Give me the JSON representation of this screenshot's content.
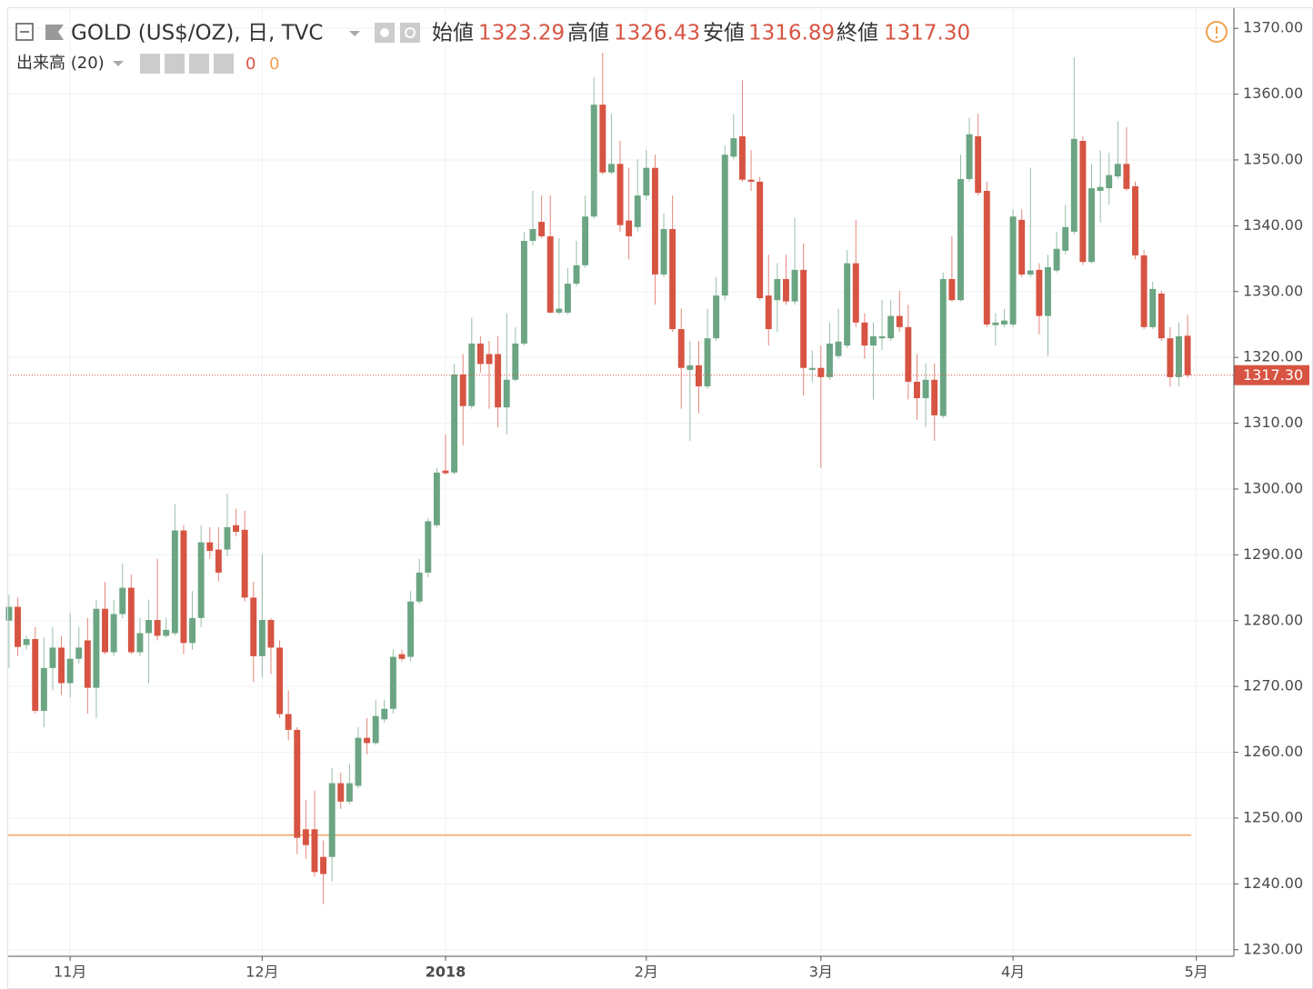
{
  "header": {
    "symbol": "GOLD (US$/OZ), 日, TVC",
    "ohlc": [
      {
        "label": "始値",
        "value": "1323.29"
      },
      {
        "label": "高値",
        "value": "1326.43"
      },
      {
        "label": "安値",
        "value": "1316.89"
      },
      {
        "label": "終値",
        "value": "1317.30"
      }
    ],
    "volume": {
      "label": "出来高 (20)",
      "values": [
        "0",
        "0"
      ]
    }
  },
  "chart_data": {
    "type": "candlestick",
    "up_color": "#6ba583",
    "down_color": "#d75442",
    "grid": true,
    "xlim": [
      -0.2,
      140.3
    ],
    "xticks": [
      {
        "value": 7,
        "label": "11月"
      },
      {
        "value": 29,
        "label": "12月"
      },
      {
        "value": 50,
        "label": "2018"
      },
      {
        "value": 73,
        "label": "2月"
      },
      {
        "value": 93,
        "label": "3月"
      },
      {
        "value": 115,
        "label": "4月"
      },
      {
        "value": 136,
        "label": "5月"
      }
    ],
    "ylim": [
      1229.0,
      1373.2
    ],
    "yticks": [
      {
        "value": 1230,
        "label": "1230.00"
      },
      {
        "value": 1240,
        "label": "1240.00"
      },
      {
        "value": 1250,
        "label": "1250.00"
      },
      {
        "value": 1260,
        "label": "1260.00"
      },
      {
        "value": 1270,
        "label": "1270.00"
      },
      {
        "value": 1280,
        "label": "1280.00"
      },
      {
        "value": 1290,
        "label": "1290.00"
      },
      {
        "value": 1300,
        "label": "1300.00"
      },
      {
        "value": 1310,
        "label": "1310.00"
      },
      {
        "value": 1320,
        "label": "1320.00"
      },
      {
        "value": 1330,
        "label": "1330.00"
      },
      {
        "value": 1340,
        "label": "1340.00"
      },
      {
        "value": 1350,
        "label": "1350.00"
      },
      {
        "value": 1360,
        "label": "1360.00"
      },
      {
        "value": 1370,
        "label": "1370.00"
      }
    ],
    "last_price": {
      "value": 1317.3,
      "label": "1317.30",
      "color": "#d75442"
    },
    "volume_ma": {
      "value": 1247.4,
      "color": "#f4a460"
    },
    "ohlc": [
      [
        1280.0,
        1283.9,
        1272.8,
        1282.1
      ],
      [
        1282.1,
        1283.5,
        1274.6,
        1276.0
      ],
      [
        1276.3,
        1277.7,
        1275.6,
        1277.2
      ],
      [
        1277.2,
        1279.0,
        1265.9,
        1266.3
      ],
      [
        1266.3,
        1277.4,
        1263.8,
        1272.8
      ],
      [
        1272.8,
        1279.0,
        1269.4,
        1275.9
      ],
      [
        1275.9,
        1277.7,
        1268.7,
        1270.5
      ],
      [
        1270.5,
        1281.1,
        1268.3,
        1274.2
      ],
      [
        1274.2,
        1279.0,
        1273.5,
        1275.9
      ],
      [
        1277.0,
        1280.4,
        1265.9,
        1269.8
      ],
      [
        1269.8,
        1283.2,
        1265.2,
        1281.8
      ],
      [
        1281.8,
        1285.9,
        1274.9,
        1275.2
      ],
      [
        1275.2,
        1283.2,
        1274.6,
        1281.0
      ],
      [
        1281.0,
        1288.7,
        1280.4,
        1285.0
      ],
      [
        1285.0,
        1287.0,
        1274.9,
        1275.2
      ],
      [
        1275.2,
        1280.4,
        1274.6,
        1278.1
      ],
      [
        1278.1,
        1283.2,
        1270.5,
        1280.1
      ],
      [
        1280.1,
        1289.4,
        1277.0,
        1277.7
      ],
      [
        1277.7,
        1280.4,
        1277.4,
        1278.6
      ],
      [
        1278.1,
        1297.7,
        1277.7,
        1293.7
      ],
      [
        1293.7,
        1294.5,
        1274.9,
        1276.6
      ],
      [
        1276.6,
        1284.5,
        1275.6,
        1280.4
      ],
      [
        1280.4,
        1294.5,
        1279.0,
        1291.9
      ],
      [
        1291.9,
        1294.2,
        1289.4,
        1290.6
      ],
      [
        1290.8,
        1294.2,
        1286.0,
        1287.3
      ],
      [
        1290.8,
        1299.3,
        1289.8,
        1294.2
      ],
      [
        1294.5,
        1297.0,
        1292.8,
        1293.5
      ],
      [
        1293.8,
        1296.7,
        1282.9,
        1283.5
      ],
      [
        1283.5,
        1285.9,
        1270.7,
        1274.6
      ],
      [
        1274.6,
        1290.1,
        1271.4,
        1280.1
      ],
      [
        1280.1,
        1280.4,
        1271.9,
        1275.9
      ],
      [
        1275.9,
        1277.0,
        1265.2,
        1265.8
      ],
      [
        1265.8,
        1269.4,
        1261.8,
        1263.4
      ],
      [
        1263.4,
        1263.8,
        1244.5,
        1247.0
      ],
      [
        1248.3,
        1252.8,
        1243.8,
        1245.9
      ],
      [
        1248.3,
        1254.2,
        1241.1,
        1241.8
      ],
      [
        1244.1,
        1246.6,
        1236.9,
        1241.5
      ],
      [
        1244.1,
        1257.6,
        1240.4,
        1255.3
      ],
      [
        1255.3,
        1256.9,
        1251.4,
        1252.5
      ],
      [
        1252.5,
        1258.3,
        1252.1,
        1255.3
      ],
      [
        1254.9,
        1263.8,
        1254.5,
        1262.2
      ],
      [
        1262.2,
        1265.2,
        1259.7,
        1261.4
      ],
      [
        1261.4,
        1268.0,
        1261.1,
        1265.5
      ],
      [
        1265.0,
        1268.0,
        1264.5,
        1266.6
      ],
      [
        1266.6,
        1275.6,
        1265.9,
        1274.5
      ],
      [
        1274.9,
        1275.6,
        1273.8,
        1274.2
      ],
      [
        1274.5,
        1284.5,
        1273.8,
        1282.9
      ],
      [
        1282.9,
        1289.4,
        1282.5,
        1287.3
      ],
      [
        1287.3,
        1295.6,
        1286.6,
        1295.1
      ],
      [
        1294.5,
        1303.2,
        1294.2,
        1302.5
      ],
      [
        1302.8,
        1308.3,
        1302.2,
        1302.4
      ],
      [
        1302.5,
        1319.0,
        1302.2,
        1317.4
      ],
      [
        1317.4,
        1320.5,
        1306.6,
        1312.6
      ],
      [
        1312.6,
        1326.0,
        1312.2,
        1322.1
      ],
      [
        1322.1,
        1323.2,
        1317.7,
        1319.0
      ],
      [
        1320.5,
        1322.5,
        1312.2,
        1319.0
      ],
      [
        1320.5,
        1323.2,
        1309.4,
        1312.4
      ],
      [
        1312.4,
        1326.7,
        1308.3,
        1316.6
      ],
      [
        1316.6,
        1324.6,
        1316.3,
        1322.1
      ],
      [
        1322.1,
        1339.1,
        1321.8,
        1337.7
      ],
      [
        1337.7,
        1345.3,
        1337.0,
        1339.5
      ],
      [
        1340.6,
        1344.6,
        1338.1,
        1338.4
      ],
      [
        1338.4,
        1344.6,
        1326.7,
        1326.8
      ],
      [
        1326.8,
        1338.1,
        1326.5,
        1327.4
      ],
      [
        1326.8,
        1333.6,
        1326.5,
        1331.2
      ],
      [
        1331.2,
        1337.7,
        1330.8,
        1334.0
      ],
      [
        1334.0,
        1344.6,
        1333.6,
        1341.4
      ],
      [
        1341.4,
        1362.6,
        1341.1,
        1358.4
      ],
      [
        1358.4,
        1366.3,
        1347.8,
        1348.1
      ],
      [
        1348.1,
        1357.0,
        1347.8,
        1349.4
      ],
      [
        1349.4,
        1352.9,
        1339.1,
        1340.1
      ],
      [
        1340.8,
        1348.8,
        1334.9,
        1338.4
      ],
      [
        1339.8,
        1350.1,
        1339.1,
        1344.6
      ],
      [
        1344.6,
        1351.5,
        1343.9,
        1348.8
      ],
      [
        1348.8,
        1350.8,
        1328.0,
        1332.6
      ],
      [
        1332.6,
        1341.9,
        1332.2,
        1339.5
      ],
      [
        1339.5,
        1344.6,
        1323.9,
        1324.3
      ],
      [
        1324.3,
        1327.4,
        1312.2,
        1318.4
      ],
      [
        1318.1,
        1322.5,
        1307.3,
        1318.8
      ],
      [
        1318.8,
        1322.5,
        1311.5,
        1315.6
      ],
      [
        1315.6,
        1327.4,
        1315.2,
        1322.9
      ],
      [
        1322.9,
        1332.2,
        1322.5,
        1329.4
      ],
      [
        1329.4,
        1352.2,
        1328.7,
        1350.8
      ],
      [
        1350.5,
        1357.0,
        1350.1,
        1353.3
      ],
      [
        1353.6,
        1362.1,
        1346.7,
        1347.0
      ],
      [
        1347.0,
        1351.5,
        1345.3,
        1346.7
      ],
      [
        1346.7,
        1347.4,
        1328.7,
        1329.0
      ],
      [
        1329.4,
        1335.6,
        1321.8,
        1324.3
      ],
      [
        1328.7,
        1334.3,
        1323.9,
        1331.9
      ],
      [
        1331.9,
        1335.6,
        1328.0,
        1328.5
      ],
      [
        1328.5,
        1341.2,
        1328.0,
        1333.3
      ],
      [
        1333.3,
        1337.3,
        1314.2,
        1318.4
      ],
      [
        1318.1,
        1321.1,
        1316.3,
        1318.4
      ],
      [
        1318.4,
        1321.8,
        1303.2,
        1317.0
      ],
      [
        1317.0,
        1325.3,
        1316.6,
        1322.1
      ],
      [
        1320.2,
        1327.4,
        1319.8,
        1322.4
      ],
      [
        1321.8,
        1336.3,
        1321.4,
        1334.3
      ],
      [
        1334.3,
        1340.9,
        1324.6,
        1325.3
      ],
      [
        1325.3,
        1326.7,
        1319.8,
        1321.8
      ],
      [
        1321.8,
        1325.3,
        1313.6,
        1323.2
      ],
      [
        1322.9,
        1328.7,
        1321.1,
        1323.2
      ],
      [
        1322.9,
        1328.7,
        1322.5,
        1326.3
      ],
      [
        1326.3,
        1330.1,
        1323.9,
        1324.6
      ],
      [
        1324.6,
        1328.0,
        1313.6,
        1316.3
      ],
      [
        1316.3,
        1320.5,
        1310.5,
        1313.8
      ],
      [
        1313.8,
        1319.1,
        1309.4,
        1316.6
      ],
      [
        1316.6,
        1319.1,
        1307.3,
        1311.2
      ],
      [
        1311.1,
        1332.9,
        1310.8,
        1331.9
      ],
      [
        1331.9,
        1338.4,
        1328.5,
        1328.7
      ],
      [
        1328.7,
        1350.8,
        1328.5,
        1347.1
      ],
      [
        1347.1,
        1356.4,
        1346.7,
        1353.9
      ],
      [
        1353.6,
        1357.0,
        1344.6,
        1345.0
      ],
      [
        1345.3,
        1346.7,
        1324.6,
        1325.0
      ],
      [
        1324.9,
        1326.7,
        1321.8,
        1325.3
      ],
      [
        1325.0,
        1327.4,
        1324.6,
        1325.6
      ],
      [
        1325.0,
        1342.5,
        1324.6,
        1341.4
      ],
      [
        1340.9,
        1342.5,
        1332.2,
        1332.6
      ],
      [
        1332.6,
        1348.8,
        1332.2,
        1333.2
      ],
      [
        1333.3,
        1334.3,
        1323.5,
        1326.3
      ],
      [
        1326.3,
        1335.6,
        1320.2,
        1333.7
      ],
      [
        1333.2,
        1339.1,
        1332.9,
        1336.5
      ],
      [
        1336.2,
        1343.2,
        1335.6,
        1339.8
      ],
      [
        1339.1,
        1365.6,
        1338.7,
        1353.2
      ],
      [
        1352.9,
        1353.6,
        1334.0,
        1334.5
      ],
      [
        1334.5,
        1349.4,
        1334.3,
        1345.7
      ],
      [
        1345.3,
        1351.5,
        1340.5,
        1345.9
      ],
      [
        1345.7,
        1351.1,
        1343.2,
        1347.7
      ],
      [
        1347.5,
        1355.9,
        1347.1,
        1349.4
      ],
      [
        1349.4,
        1355.0,
        1345.3,
        1345.6
      ],
      [
        1346.0,
        1346.7,
        1334.9,
        1335.5
      ],
      [
        1335.5,
        1336.3,
        1324.3,
        1324.6
      ],
      [
        1324.6,
        1331.5,
        1324.3,
        1330.4
      ],
      [
        1329.7,
        1330.1,
        1322.5,
        1322.9
      ],
      [
        1322.9,
        1324.6,
        1315.6,
        1317.0
      ],
      [
        1317.0,
        1325.3,
        1315.6,
        1323.2
      ],
      [
        1323.29,
        1326.43,
        1316.89,
        1317.3
      ]
    ]
  }
}
